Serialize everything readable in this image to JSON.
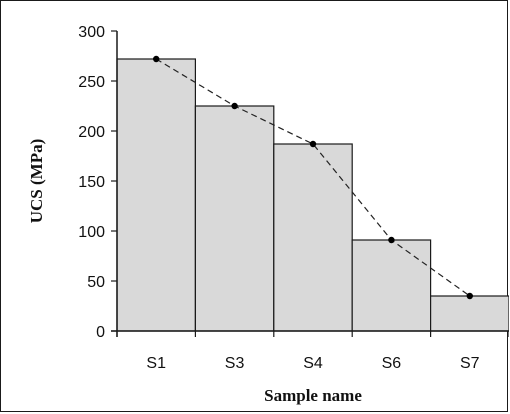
{
  "chart_data": {
    "type": "bar",
    "title": "",
    "xlabel": "Sample name",
    "ylabel": "UCS (MPa)",
    "categories": [
      "S1",
      "S3",
      "S4",
      "S6",
      "S7"
    ],
    "values": [
      272,
      225,
      187,
      91,
      35
    ],
    "ylim": [
      0,
      300
    ],
    "yticks": [
      0,
      50,
      100,
      150,
      200,
      250,
      300
    ],
    "grid": false,
    "legend": "none",
    "overlay_line": {
      "style": "dashed",
      "marker": "dot",
      "values": [
        272,
        225,
        187,
        91,
        35
      ]
    },
    "colors": {
      "bar_fill": "#d9d9d9",
      "bar_stroke": "#1a1a1a",
      "line": "#222222",
      "marker": "#000000"
    }
  }
}
